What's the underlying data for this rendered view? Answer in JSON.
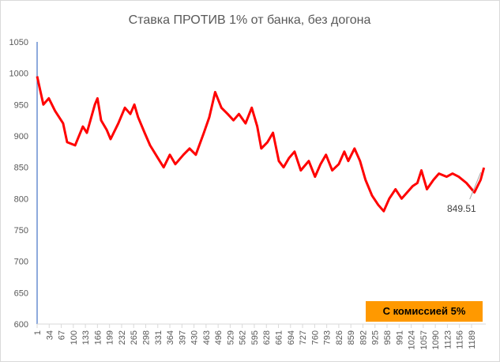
{
  "chart_data": {
    "type": "line",
    "title": "Ставка ПРОТИВ 1% от банка, без догона",
    "x": [
      1,
      18,
      33,
      50,
      72,
      83,
      105,
      126,
      137,
      159,
      166,
      176,
      191,
      202,
      223,
      241,
      256,
      267,
      277,
      295,
      310,
      331,
      347,
      364,
      379,
      401,
      418,
      435,
      457,
      472,
      488,
      505,
      522,
      538,
      553,
      571,
      588,
      603,
      614,
      631,
      646,
      662,
      675,
      690,
      705,
      722,
      744,
      761,
      776,
      791,
      808,
      826,
      841,
      852,
      869,
      884,
      899,
      917,
      934,
      949,
      964,
      981,
      998,
      1013,
      1028,
      1041,
      1052,
      1067,
      1085,
      1100,
      1121,
      1137,
      1154,
      1175,
      1197,
      1214,
      1223
    ],
    "series": [
      {
        "name": "Ставка ПРОТИВ",
        "color": "#ff0000",
        "values": [
          995,
          950,
          960,
          940,
          920,
          890,
          885,
          915,
          905,
          950,
          960,
          925,
          910,
          895,
          920,
          945,
          935,
          950,
          930,
          905,
          885,
          865,
          850,
          870,
          855,
          870,
          880,
          870,
          905,
          930,
          970,
          945,
          935,
          925,
          935,
          920,
          945,
          915,
          880,
          890,
          905,
          860,
          850,
          865,
          875,
          845,
          860,
          835,
          855,
          870,
          845,
          855,
          875,
          860,
          880,
          860,
          830,
          805,
          790,
          780,
          800,
          815,
          800,
          810,
          820,
          825,
          845,
          815,
          830,
          840,
          835,
          840,
          835,
          825,
          810,
          830,
          849.51
        ]
      }
    ],
    "xlim": [
      1,
      1228
    ],
    "xticks": [
      1,
      34,
      67,
      100,
      133,
      166,
      199,
      232,
      265,
      298,
      331,
      364,
      397,
      430,
      463,
      496,
      529,
      562,
      595,
      628,
      661,
      694,
      727,
      760,
      793,
      826,
      859,
      892,
      925,
      958,
      991,
      1024,
      1057,
      1090,
      1123,
      1156,
      1189
    ],
    "ylim": [
      600,
      1050
    ],
    "yticks": [
      600,
      650,
      700,
      750,
      800,
      850,
      900,
      950,
      1000,
      1050
    ],
    "grid": false,
    "annotation": "С комиссией 5%"
  }
}
